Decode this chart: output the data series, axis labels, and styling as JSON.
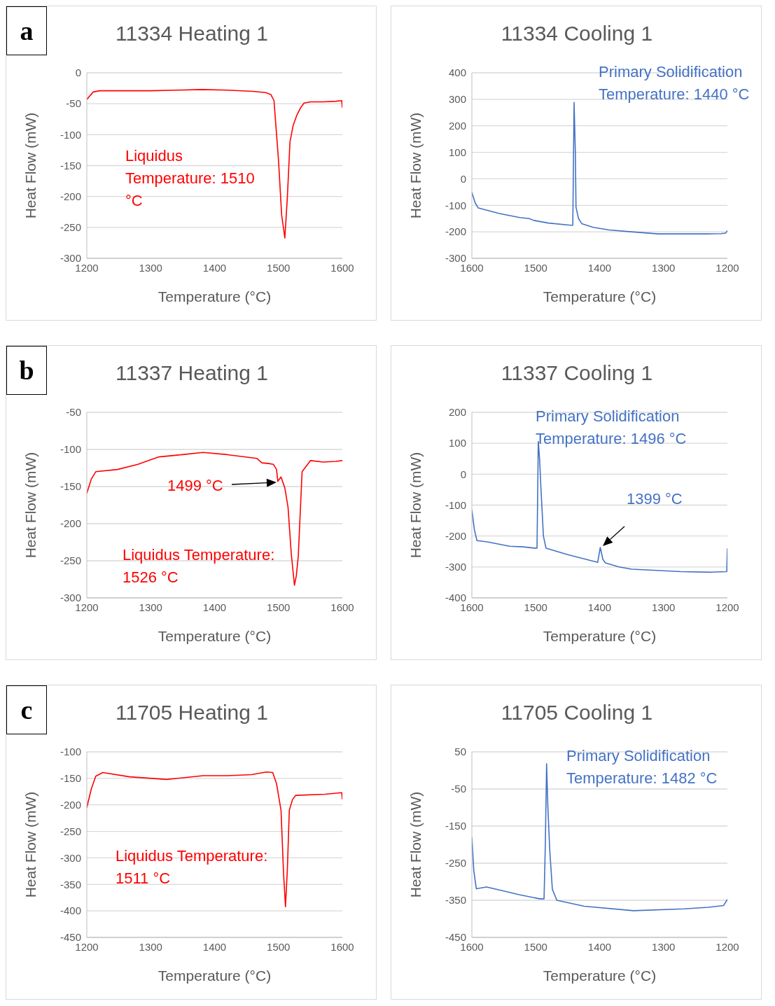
{
  "chart_data": [
    {
      "type": "line",
      "title": "11334 Heating 1",
      "xlabel": "Temperature (°C)",
      "ylabel": "Heat Flow (mW)",
      "xlim": [
        1200,
        1600
      ],
      "xticks": [
        1200,
        1300,
        1400,
        1500,
        1600
      ],
      "ylim": [
        -300,
        0
      ],
      "yticks": [
        0,
        -50,
        -100,
        -150,
        -200,
        -250,
        -300
      ],
      "grid": "y",
      "legend": false,
      "marker": "none",
      "annotations": [
        "a",
        "Liquidus Temperature: 1510 °C"
      ],
      "series": [
        {
          "color": "#ff0000",
          "x": [
            1200,
            1210,
            1220,
            1260,
            1300,
            1340,
            1380,
            1420,
            1460,
            1480,
            1488,
            1493,
            1500,
            1505,
            1510,
            1514,
            1518,
            1523,
            1529,
            1535,
            1540,
            1550,
            1570,
            1590,
            1599,
            1600
          ],
          "values": [
            -43,
            -31,
            -29,
            -29,
            -29,
            -28,
            -27,
            -28,
            -30,
            -32,
            -35,
            -45,
            -140,
            -230,
            -267,
            -200,
            -112,
            -85,
            -68,
            -56,
            -49,
            -47,
            -47,
            -46,
            -45,
            -56
          ]
        }
      ]
    },
    {
      "type": "line",
      "title": "11334 Cooling 1",
      "xlabel": "Temperature (°C)",
      "ylabel": "Heat Flow (mW)",
      "xlim": [
        1600,
        1200
      ],
      "xticks": [
        1600,
        1500,
        1400,
        1300,
        1200
      ],
      "ylim": [
        -300,
        400
      ],
      "yticks": [
        400,
        300,
        200,
        100,
        0,
        -100,
        -200,
        -300
      ],
      "grid": "y",
      "legend": false,
      "marker": "none",
      "annotations": [
        "Primary Solidification Temperature: 1440 °C"
      ],
      "series": [
        {
          "color": "#4472c4",
          "x": [
            1600,
            1595,
            1590,
            1557,
            1525,
            1510,
            1503,
            1480,
            1445,
            1442,
            1440,
            1438,
            1437,
            1433,
            1428,
            1410,
            1385,
            1350,
            1308,
            1270,
            1232,
            1210,
            1203,
            1200
          ],
          "values": [
            -51,
            -90,
            -110,
            -131,
            -146,
            -150,
            -157,
            -167,
            -175,
            -175,
            288,
            100,
            -107,
            -150,
            -169,
            -183,
            -193,
            -200,
            -208,
            -208,
            -208,
            -207,
            -205,
            -196
          ]
        }
      ]
    },
    {
      "type": "line",
      "title": "11337 Heating 1",
      "xlabel": "Temperature (°C)",
      "ylabel": "Heat Flow (mW)",
      "xlim": [
        1200,
        1600
      ],
      "xticks": [
        1200,
        1300,
        1400,
        1500,
        1600
      ],
      "ylim": [
        -300,
        -50
      ],
      "yticks": [
        -50,
        -100,
        -150,
        -200,
        -250,
        -300
      ],
      "grid": "y",
      "legend": false,
      "marker": "none",
      "annotations": [
        "b",
        "1499 °C",
        "Liquidus Temperature: 1526 °C"
      ],
      "series": [
        {
          "color": "#ff0000",
          "x": [
            1200,
            1207,
            1214,
            1248,
            1280,
            1313,
            1350,
            1382,
            1420,
            1466,
            1474,
            1485,
            1492,
            1497,
            1499,
            1504,
            1510,
            1515,
            1520,
            1525,
            1528,
            1531,
            1537,
            1550,
            1570,
            1590,
            1600
          ],
          "values": [
            -159,
            -140,
            -130,
            -127,
            -120,
            -110,
            -107,
            -104,
            -107,
            -112,
            -118,
            -119,
            -120,
            -127,
            -143,
            -137,
            -152,
            -178,
            -240,
            -283,
            -270,
            -244,
            -130,
            -115,
            -117,
            -116,
            -115
          ]
        }
      ]
    },
    {
      "type": "line",
      "title": "11337 Cooling 1",
      "xlabel": "Temperature (°C)",
      "ylabel": "Heat Flow (mW)",
      "xlim": [
        1600,
        1200
      ],
      "xticks": [
        1600,
        1500,
        1400,
        1300,
        1200
      ],
      "ylim": [
        -400,
        200
      ],
      "yticks": [
        200,
        100,
        0,
        -100,
        -200,
        -300,
        -400
      ],
      "grid": "y",
      "legend": false,
      "marker": "none",
      "annotations": [
        "Primary Solidification Temperature: 1496 °C",
        "1399 °C"
      ],
      "series": [
        {
          "color": "#4472c4",
          "x": [
            1600,
            1596,
            1592,
            1576,
            1541,
            1520,
            1503,
            1498,
            1496,
            1494,
            1492,
            1488,
            1484,
            1450,
            1403,
            1399,
            1395,
            1391,
            1370,
            1350,
            1273,
            1227,
            1201,
            1200
          ],
          "values": [
            -116,
            -180,
            -215,
            -219,
            -233,
            -235,
            -239,
            -239,
            106,
            50,
            -40,
            -200,
            -239,
            -260,
            -285,
            -237,
            -275,
            -287,
            -300,
            -307,
            -315,
            -317,
            -315,
            -241
          ]
        }
      ]
    },
    {
      "type": "line",
      "title": "11705 Heating 1",
      "xlabel": "Temperature (°C)",
      "ylabel": "Heat Flow (mW)",
      "xlim": [
        1200,
        1600
      ],
      "xticks": [
        1200,
        1300,
        1400,
        1500,
        1600
      ],
      "ylim": [
        -450,
        -100
      ],
      "yticks": [
        -100,
        -150,
        -200,
        -250,
        -300,
        -350,
        -400,
        -450
      ],
      "grid": "y",
      "legend": false,
      "marker": "none",
      "annotations": [
        "c",
        "Liquidus Temperature: 1511 °C"
      ],
      "series": [
        {
          "color": "#ff0000",
          "x": [
            1200,
            1207,
            1214,
            1225,
            1267,
            1325,
            1382,
            1420,
            1458,
            1481,
            1491,
            1497,
            1504,
            1508,
            1511,
            1514,
            1517,
            1522,
            1527,
            1573,
            1599,
            1600
          ],
          "values": [
            -205,
            -170,
            -146,
            -139,
            -147,
            -152,
            -145,
            -145,
            -143,
            -138,
            -139,
            -160,
            -210,
            -330,
            -392,
            -320,
            -210,
            -190,
            -182,
            -180,
            -177,
            -189
          ]
        }
      ]
    },
    {
      "type": "line",
      "title": "11705 Cooling 1",
      "xlabel": "Temperature (°C)",
      "ylabel": "Heat Flow (mW)",
      "xlim": [
        1600,
        1200
      ],
      "xticks": [
        1600,
        1500,
        1400,
        1300,
        1200
      ],
      "ylim": [
        -450,
        50
      ],
      "yticks": [
        50,
        -50,
        -150,
        -250,
        -350,
        -450
      ],
      "grid": "y",
      "legend": false,
      "marker": "none",
      "annotations": [
        "Primary Solidification Temperature: 1482 °C"
      ],
      "series": [
        {
          "color": "#4472c4",
          "x": [
            1600,
            1597,
            1593,
            1577,
            1550,
            1526,
            1494,
            1487,
            1485,
            1483,
            1481,
            1478,
            1474,
            1467,
            1424,
            1347,
            1268,
            1230,
            1206,
            1200
          ],
          "values": [
            -181,
            -270,
            -319,
            -314,
            -325,
            -335,
            -346,
            -346,
            -200,
            18,
            -100,
            -217,
            -320,
            -350,
            -366,
            -378,
            -373,
            -369,
            -364,
            -348
          ]
        }
      ]
    }
  ]
}
